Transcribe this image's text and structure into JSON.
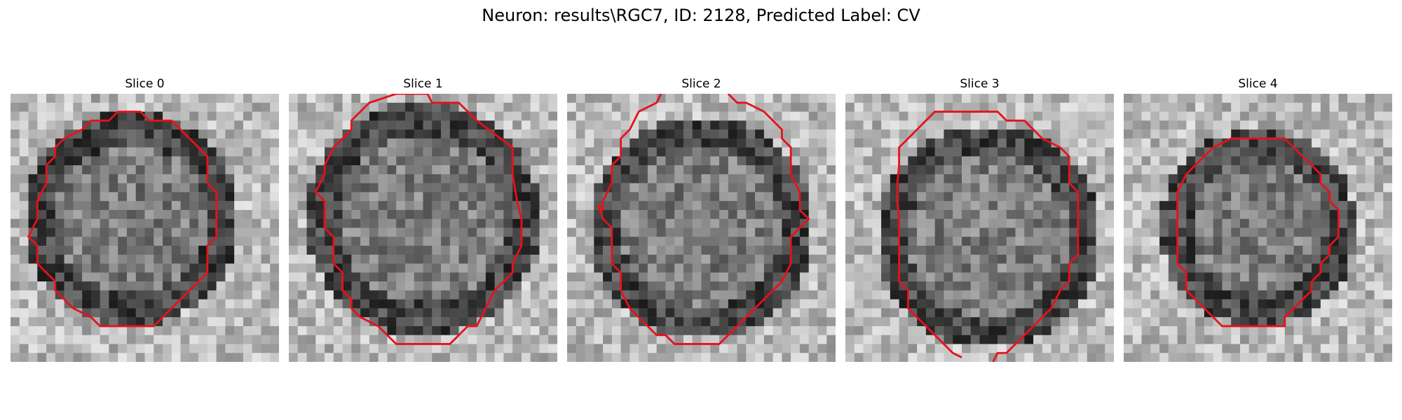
{
  "figure": {
    "title": "Neuron: results\\RGC7, ID: 2128, Predicted Label: CV"
  },
  "panels": [
    {
      "title": "Slice 0"
    },
    {
      "title": "Slice 1"
    },
    {
      "title": "Slice 2"
    },
    {
      "title": "Slice 3"
    },
    {
      "title": "Slice 4"
    }
  ],
  "colors": {
    "contour": "#e8111a",
    "background": "#ffffff"
  }
}
